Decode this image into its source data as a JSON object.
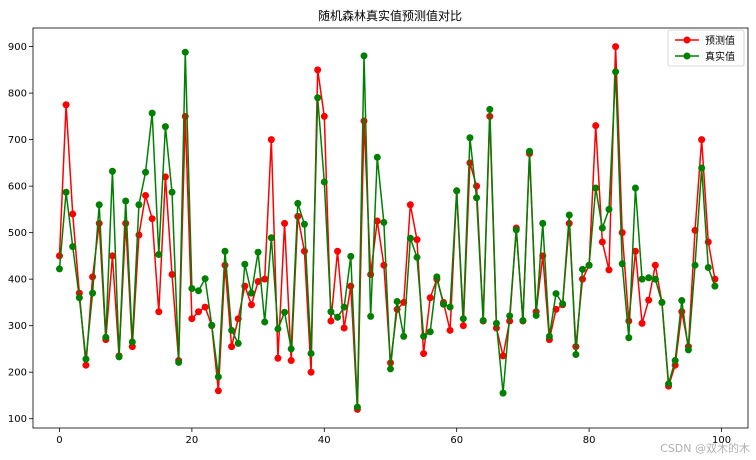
{
  "watermark": "CSDN @双木的木",
  "chart_data": {
    "type": "line",
    "title": "随机森林真实值预测值对比",
    "xlabel": "",
    "ylabel": "",
    "xlim": [
      -4,
      104
    ],
    "ylim": [
      80,
      940
    ],
    "xticks": [
      0,
      20,
      40,
      60,
      80,
      100
    ],
    "yticks": [
      100,
      200,
      300,
      400,
      500,
      600,
      700,
      800,
      900
    ],
    "grid": false,
    "legend_position": "top-right",
    "x": [
      0,
      1,
      2,
      3,
      4,
      5,
      6,
      7,
      8,
      9,
      10,
      11,
      12,
      13,
      14,
      15,
      16,
      17,
      18,
      19,
      20,
      21,
      22,
      23,
      24,
      25,
      26,
      27,
      28,
      29,
      30,
      31,
      32,
      33,
      34,
      35,
      36,
      37,
      38,
      39,
      40,
      41,
      42,
      43,
      44,
      45,
      46,
      47,
      48,
      49,
      50,
      51,
      52,
      53,
      54,
      55,
      56,
      57,
      58,
      59,
      60,
      61,
      62,
      63,
      64,
      65,
      66,
      67,
      68,
      69,
      70,
      71,
      72,
      73,
      74,
      75,
      76,
      77,
      78,
      79,
      80,
      81,
      82,
      83,
      84,
      85,
      86,
      87,
      88,
      89,
      90,
      91,
      92,
      93,
      94,
      95,
      96,
      97,
      98,
      99
    ],
    "series": [
      {
        "name": "预测值",
        "color": "#ff0000",
        "values": [
          450,
          775,
          540,
          370,
          215,
          405,
          520,
          270,
          450,
          235,
          520,
          255,
          495,
          580,
          530,
          330,
          620,
          410,
          225,
          750,
          315,
          330,
          340,
          300,
          160,
          430,
          255,
          315,
          385,
          345,
          395,
          400,
          700,
          230,
          520,
          225,
          535,
          460,
          200,
          850,
          750,
          310,
          460,
          295,
          385,
          120,
          740,
          410,
          525,
          430,
          220,
          335,
          350,
          560,
          485,
          240,
          360,
          400,
          350,
          290,
          590,
          300,
          650,
          600,
          310,
          750,
          295,
          235,
          310,
          510,
          310,
          670,
          330,
          450,
          270,
          335,
          345,
          520,
          255,
          400,
          430,
          730,
          480,
          420,
          900,
          500,
          310,
          460,
          305,
          355,
          430,
          350,
          170,
          215,
          330,
          255,
          505,
          700,
          480,
          400
        ]
      },
      {
        "name": "真实值",
        "color": "#008000",
        "values": [
          422,
          587,
          470,
          360,
          228,
          370,
          560,
          275,
          632,
          233,
          568,
          265,
          560,
          630,
          757,
          453,
          728,
          587,
          221,
          888,
          380,
          375,
          401,
          301,
          190,
          460,
          290,
          262,
          432,
          370,
          458,
          308,
          489,
          293,
          329,
          250,
          563,
          518,
          240,
          790,
          609,
          330,
          318,
          340,
          449,
          125,
          880,
          320,
          662,
          522,
          207,
          352,
          277,
          488,
          447,
          277,
          287,
          405,
          346,
          340,
          590,
          315,
          704,
          575,
          311,
          765,
          305,
          155,
          321,
          506,
          311,
          675,
          322,
          520,
          277,
          369,
          347,
          538,
          238,
          421,
          430,
          596,
          510,
          550,
          846,
          433,
          274,
          596,
          400,
          403,
          400,
          350,
          175,
          225,
          354,
          248,
          430,
          639,
          425,
          385
        ]
      }
    ]
  }
}
